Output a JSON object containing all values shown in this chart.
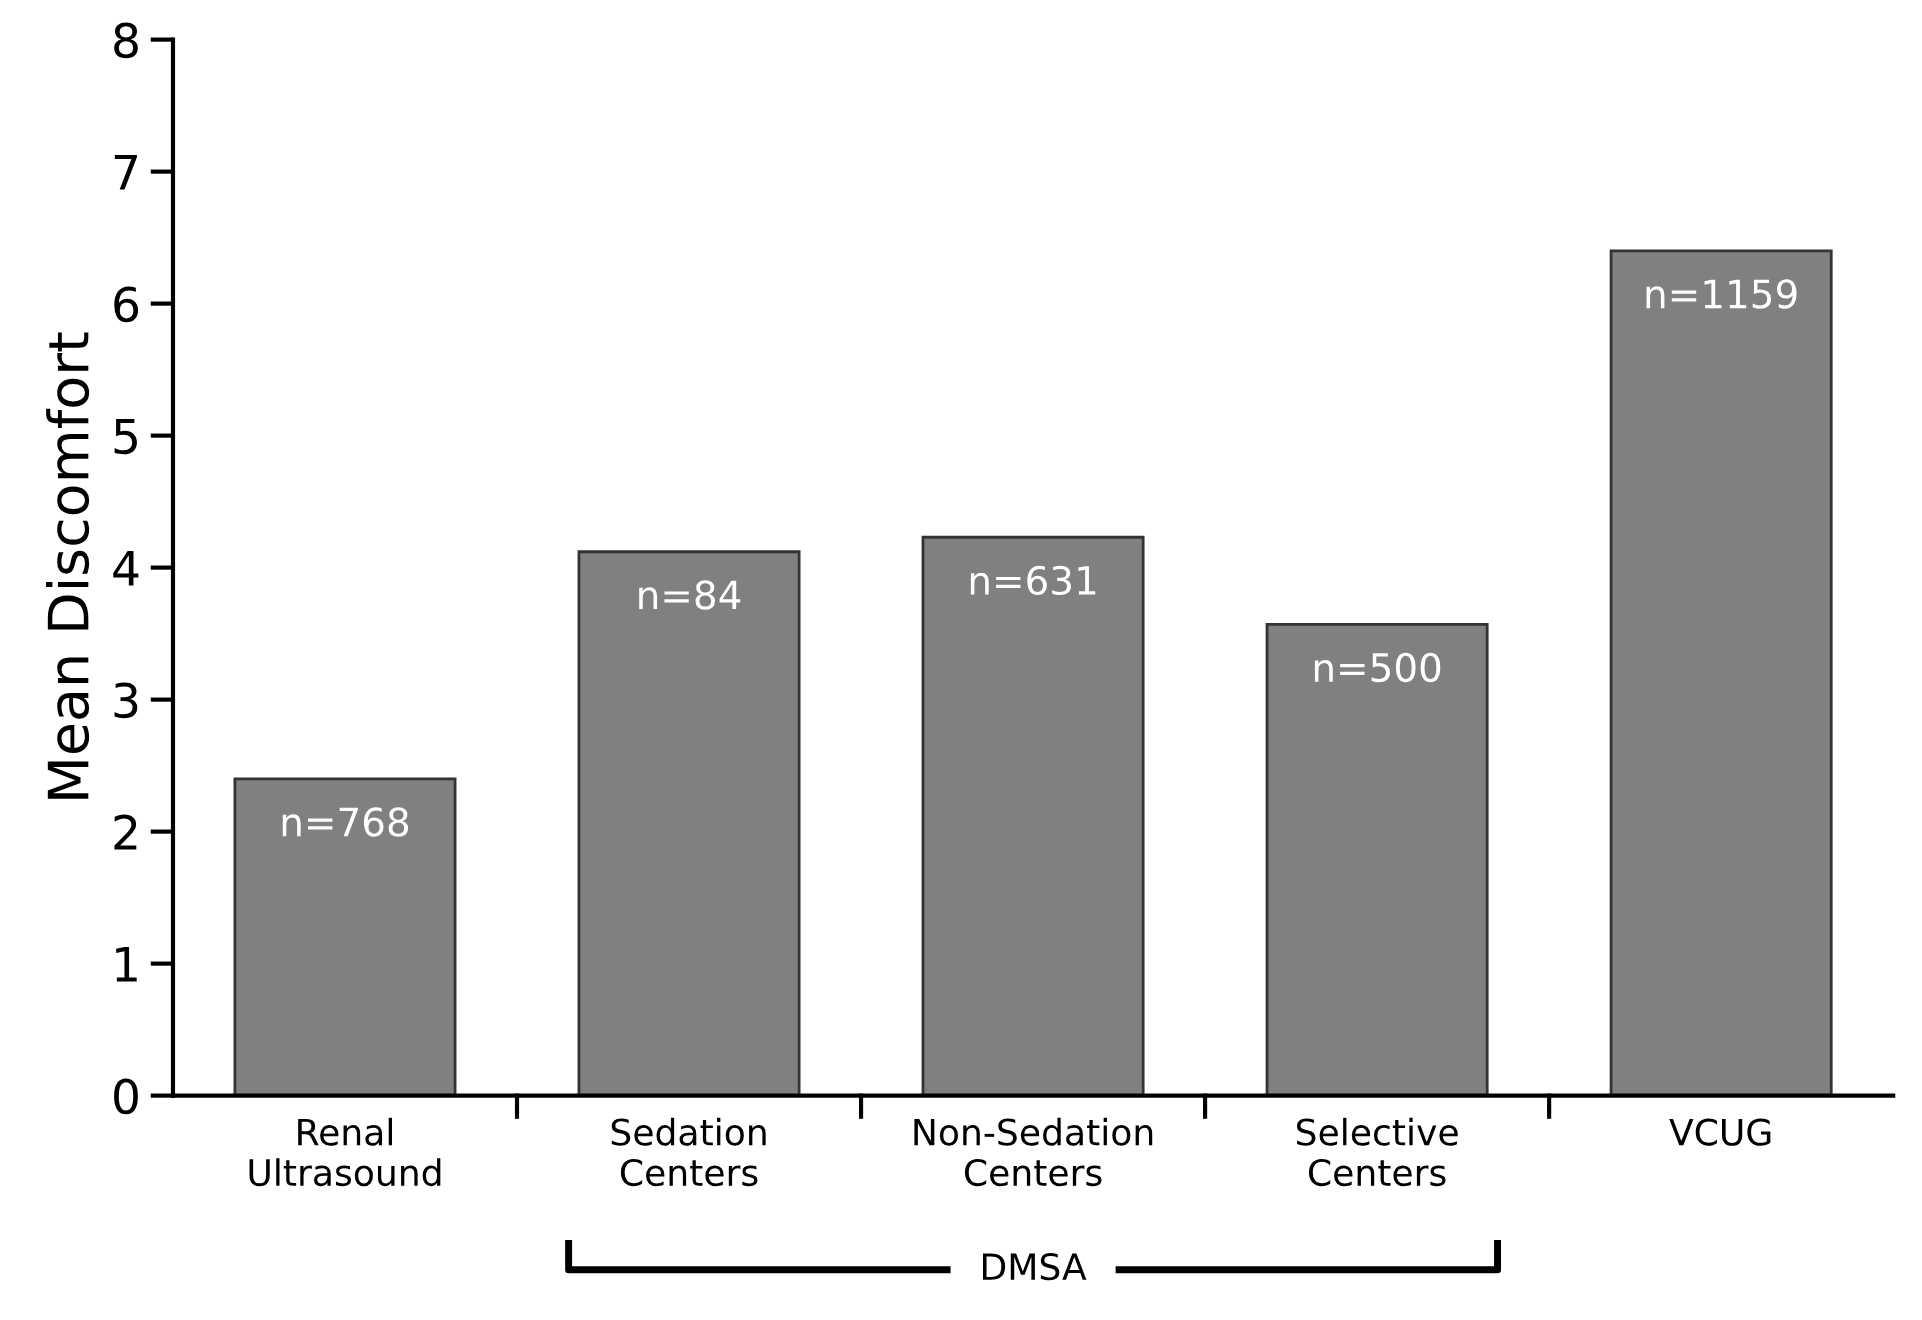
{
  "chart_data": {
    "type": "bar",
    "ylabel": "Mean Discomfort",
    "categories": [
      "Renal\nUltrasound",
      "Sedation\nCenters",
      "Non-Sedation\nCenters",
      "Selective\nCenters",
      "VCUG"
    ],
    "values": [
      2.4,
      4.12,
      4.23,
      3.57,
      6.4
    ],
    "color": "#808080",
    "ylim": [
      0,
      8
    ],
    "yticks": [
      0,
      1,
      2,
      3,
      4,
      5,
      6,
      7,
      8
    ],
    "grid": false,
    "legend": false,
    "annotations": [
      {
        "text": "n=768",
        "x": "Renal\nUltrasound",
        "y": 2.4
      },
      {
        "text": "n=84",
        "x": "Sedation\nCenters",
        "y": 4.12
      },
      {
        "text": "n=631",
        "x": "Non-Sedation\nCenters",
        "y": 4.23
      },
      {
        "text": "n=500",
        "x": "Selective\nCenters",
        "y": 3.57
      },
      {
        "text": "n=1159",
        "x": "VCUG",
        "y": 6.4
      },
      "DMSA"
    ]
  }
}
